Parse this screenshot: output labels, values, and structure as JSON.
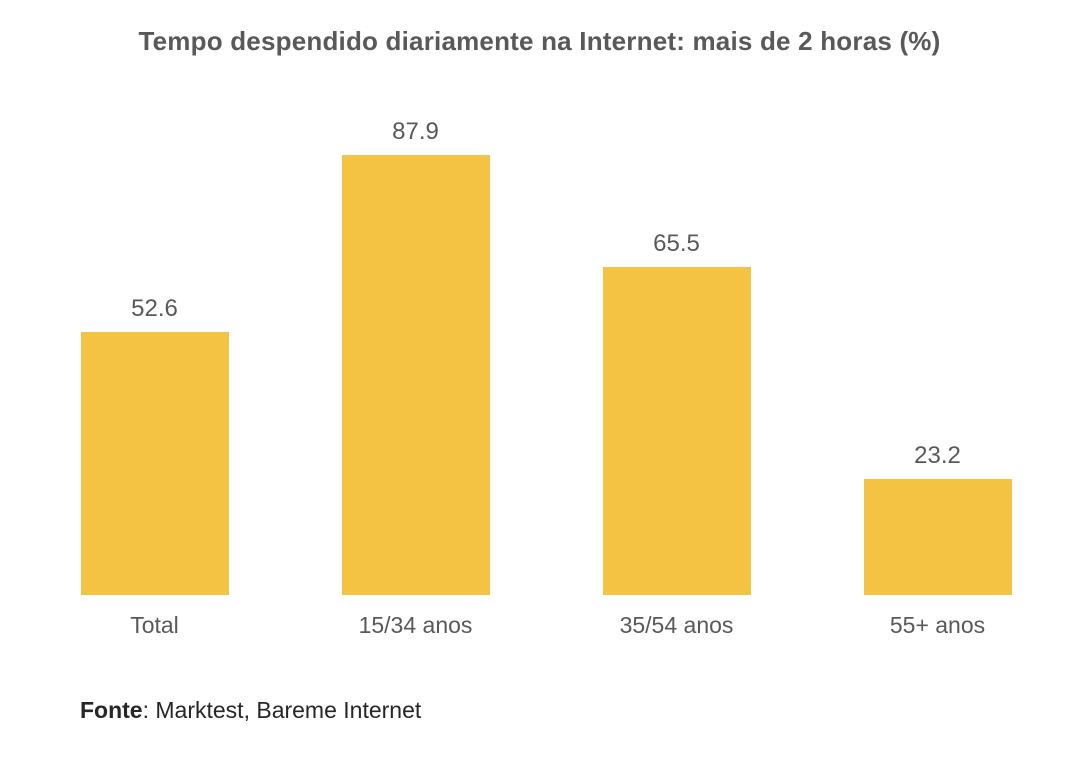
{
  "title": "Tempo despendido diariamente na Internet: mais de 2 horas (%)",
  "source": {
    "label": "Fonte",
    "text": ": Marktest, Bareme Internet"
  },
  "colors": {
    "bar": "#F5C344",
    "label_text": "#595959",
    "source_text": "#262626",
    "background": "#FFFFFF"
  },
  "chart_data": {
    "type": "bar",
    "categories": [
      "Total",
      "15/34 anos",
      "35/54 anos",
      "55+ anos"
    ],
    "values": [
      52.6,
      87.9,
      65.5,
      23.2
    ],
    "title": "Tempo despendido diariamente na Internet: mais de 2 horas (%)",
    "xlabel": "",
    "ylabel": "",
    "ylim": [
      0,
      100
    ],
    "grid": false,
    "legend": "none",
    "data_labels": true,
    "bar_color": "#F5C344",
    "source": "Fonte: Marktest, Bareme Internet"
  }
}
